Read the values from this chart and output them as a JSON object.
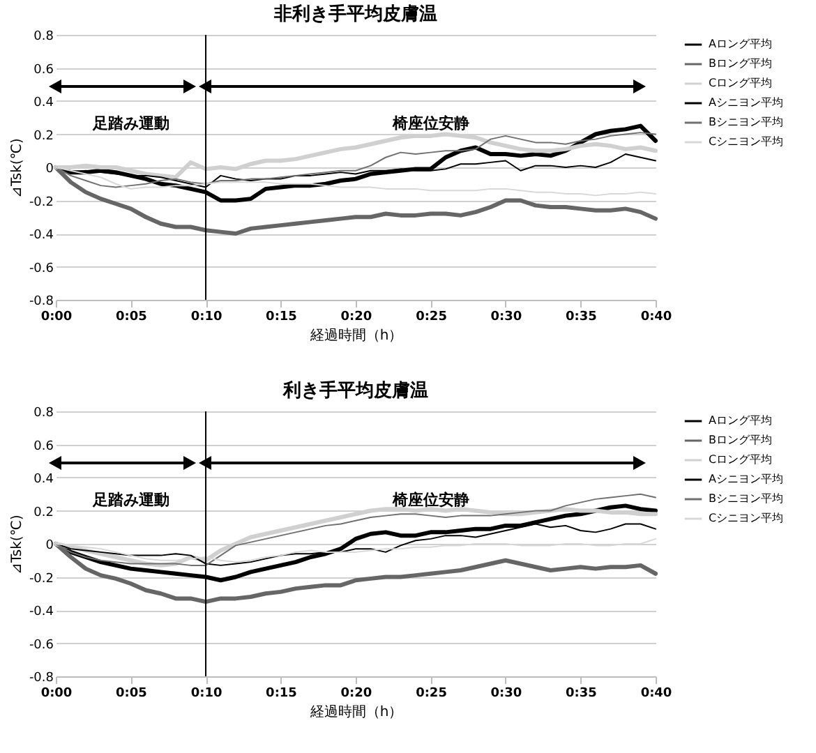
{
  "chart_data": [
    {
      "type": "line",
      "title": "非利き手平均皮膚温",
      "xlabel": "経過時間（h）",
      "ylabel": "⊿Tsk(℃)",
      "legend": "right",
      "grid": "y",
      "xlim": [
        0,
        0.6667
      ],
      "ylim": [
        -0.8,
        0.8
      ],
      "xticks": [
        {
          "value": 0,
          "label": "0:00"
        },
        {
          "value": 0.0833,
          "label": "0:05"
        },
        {
          "value": 0.1667,
          "label": "0:10"
        },
        {
          "value": 0.25,
          "label": "0:15"
        },
        {
          "value": 0.3333,
          "label": "0:20"
        },
        {
          "value": 0.4167,
          "label": "0:25"
        },
        {
          "value": 0.5,
          "label": "0:30"
        },
        {
          "value": 0.5833,
          "label": "0:35"
        },
        {
          "value": 0.6667,
          "label": "0:40"
        }
      ],
      "yticks": [
        -0.8,
        -0.6,
        -0.4,
        -0.2,
        0,
        0.2,
        0.4,
        0.6,
        0.8
      ],
      "x": [
        0,
        0.0167,
        0.0333,
        0.05,
        0.0667,
        0.0833,
        0.1,
        0.1167,
        0.1333,
        0.15,
        0.1667,
        0.1833,
        0.2,
        0.2167,
        0.2333,
        0.25,
        0.2667,
        0.2833,
        0.3,
        0.3167,
        0.3333,
        0.35,
        0.3667,
        0.3833,
        0.4,
        0.4167,
        0.4333,
        0.45,
        0.4667,
        0.4833,
        0.5,
        0.5167,
        0.5333,
        0.55,
        0.5667,
        0.5833,
        0.6,
        0.6167,
        0.6333,
        0.65,
        0.6667
      ],
      "ref_lines": [
        {
          "axis": "x",
          "value": 0.1667,
          "color": "#000000"
        }
      ],
      "annotations": [
        "足踏み運動",
        "椅座位安静"
      ],
      "series": [
        {
          "name": "Aロング平均",
          "color": "#000000",
          "values": [
            0,
            -0.03,
            -0.03,
            -0.02,
            -0.03,
            -0.05,
            -0.07,
            -0.1,
            -0.11,
            -0.13,
            -0.15,
            -0.2,
            -0.2,
            -0.19,
            -0.13,
            -0.12,
            -0.11,
            -0.11,
            -0.1,
            -0.08,
            -0.07,
            -0.04,
            -0.03,
            -0.02,
            -0.01,
            -0.01,
            0.06,
            0.1,
            0.12,
            0.08,
            0.08,
            0.07,
            0.08,
            0.07,
            0.1,
            0.15,
            0.2,
            0.22,
            0.23,
            0.25,
            0.16
          ]
        },
        {
          "name": "Bロング平均",
          "color": "#666666",
          "values": [
            0,
            -0.09,
            -0.15,
            -0.19,
            -0.22,
            -0.25,
            -0.3,
            -0.34,
            -0.36,
            -0.36,
            -0.38,
            -0.39,
            -0.4,
            -0.37,
            -0.36,
            -0.35,
            -0.34,
            -0.33,
            -0.32,
            -0.31,
            -0.3,
            -0.3,
            -0.28,
            -0.29,
            -0.29,
            -0.28,
            -0.28,
            -0.29,
            -0.27,
            -0.24,
            -0.2,
            -0.2,
            -0.23,
            -0.24,
            -0.24,
            -0.25,
            -0.26,
            -0.26,
            -0.25,
            -0.27,
            -0.31
          ]
        },
        {
          "name": "Cロング平均",
          "color": "#d0d0d0",
          "values": [
            0,
            0,
            0.01,
            0,
            0,
            -0.02,
            -0.04,
            -0.05,
            -0.06,
            0.03,
            -0.01,
            0,
            -0.01,
            0.02,
            0.04,
            0.04,
            0.05,
            0.07,
            0.09,
            0.11,
            0.12,
            0.14,
            0.16,
            0.18,
            0.19,
            0.19,
            0.2,
            0.19,
            0.18,
            0.15,
            0.13,
            0.11,
            0.1,
            0.1,
            0.11,
            0.13,
            0.14,
            0.13,
            0.11,
            0.12,
            0.1
          ]
        },
        {
          "name": "Aシニヨン平均",
          "color": "#000000",
          "values": [
            0,
            -0.03,
            -0.02,
            -0.03,
            -0.04,
            -0.05,
            -0.05,
            -0.06,
            -0.08,
            -0.1,
            -0.12,
            -0.05,
            -0.07,
            -0.08,
            -0.07,
            -0.07,
            -0.05,
            -0.05,
            -0.04,
            -0.03,
            -0.04,
            -0.02,
            -0.02,
            -0.01,
            -0.02,
            -0.02,
            -0.01,
            0.02,
            0.02,
            0.03,
            0.04,
            -0.02,
            0.01,
            0.01,
            0,
            0.01,
            0,
            0.03,
            0.08,
            0.06,
            0.04
          ]
        },
        {
          "name": "Bシニヨン平均",
          "color": "#707070",
          "values": [
            0,
            -0.05,
            -0.08,
            -0.11,
            -0.12,
            -0.11,
            -0.1,
            -0.08,
            -0.07,
            -0.09,
            -0.1,
            -0.08,
            -0.08,
            -0.07,
            -0.07,
            -0.06,
            -0.05,
            -0.04,
            -0.03,
            -0.02,
            -0.02,
            0.01,
            0.06,
            0.09,
            0.08,
            0.09,
            0.1,
            0.1,
            0.11,
            0.17,
            0.19,
            0.17,
            0.15,
            0.15,
            0.14,
            0.16,
            0.17,
            0.19,
            0.2,
            0.21,
            0.2
          ]
        },
        {
          "name": "Cシニヨン平均",
          "color": "#d8d8d8",
          "values": [
            0,
            -0.02,
            -0.04,
            -0.06,
            -0.1,
            -0.13,
            -0.12,
            -0.12,
            -0.11,
            -0.11,
            -0.1,
            -0.09,
            -0.09,
            -0.09,
            -0.09,
            -0.1,
            -0.1,
            -0.1,
            -0.11,
            -0.12,
            -0.12,
            -0.12,
            -0.13,
            -0.13,
            -0.13,
            -0.14,
            -0.14,
            -0.14,
            -0.14,
            -0.13,
            -0.13,
            -0.14,
            -0.15,
            -0.15,
            -0.16,
            -0.16,
            -0.17,
            -0.16,
            -0.16,
            -0.15,
            -0.16
          ]
        }
      ]
    },
    {
      "type": "line",
      "title": "利き手平均皮膚温",
      "xlabel": "経過時間（h）",
      "ylabel": "⊿Tsk(℃)",
      "legend": "right",
      "grid": "y",
      "xlim": [
        0,
        0.6667
      ],
      "ylim": [
        -0.8,
        0.8
      ],
      "xticks": [
        {
          "value": 0,
          "label": "0:00"
        },
        {
          "value": 0.0833,
          "label": "0:05"
        },
        {
          "value": 0.1667,
          "label": "0:10"
        },
        {
          "value": 0.25,
          "label": "0:15"
        },
        {
          "value": 0.3333,
          "label": "0:20"
        },
        {
          "value": 0.4167,
          "label": "0:25"
        },
        {
          "value": 0.5,
          "label": "0:30"
        },
        {
          "value": 0.5833,
          "label": "0:35"
        },
        {
          "value": 0.6667,
          "label": "0:40"
        }
      ],
      "yticks": [
        -0.8,
        -0.6,
        -0.4,
        -0.2,
        0,
        0.2,
        0.4,
        0.6,
        0.8
      ],
      "x": [
        0,
        0.0167,
        0.0333,
        0.05,
        0.0667,
        0.0833,
        0.1,
        0.1167,
        0.1333,
        0.15,
        0.1667,
        0.1833,
        0.2,
        0.2167,
        0.2333,
        0.25,
        0.2667,
        0.2833,
        0.3,
        0.3167,
        0.3333,
        0.35,
        0.3667,
        0.3833,
        0.4,
        0.4167,
        0.4333,
        0.45,
        0.4667,
        0.4833,
        0.5,
        0.5167,
        0.5333,
        0.55,
        0.5667,
        0.5833,
        0.6,
        0.6167,
        0.6333,
        0.65,
        0.6667
      ],
      "ref_lines": [
        {
          "axis": "x",
          "value": 0.1667,
          "color": "#000000"
        }
      ],
      "annotations": [
        "足踏み運動",
        "椅座位安静"
      ],
      "series": [
        {
          "name": "Aロング平均",
          "color": "#000000",
          "values": [
            0,
            -0.05,
            -0.08,
            -0.11,
            -0.13,
            -0.15,
            -0.16,
            -0.17,
            -0.18,
            -0.19,
            -0.2,
            -0.22,
            -0.2,
            -0.17,
            -0.15,
            -0.13,
            -0.11,
            -0.08,
            -0.06,
            -0.03,
            0.03,
            0.06,
            0.07,
            0.05,
            0.05,
            0.07,
            0.07,
            0.08,
            0.09,
            0.09,
            0.11,
            0.11,
            0.13,
            0.15,
            0.17,
            0.18,
            0.2,
            0.22,
            0.23,
            0.21,
            0.2
          ]
        },
        {
          "name": "Bロング平均",
          "color": "#666666",
          "values": [
            0,
            -0.08,
            -0.15,
            -0.19,
            -0.21,
            -0.24,
            -0.28,
            -0.3,
            -0.33,
            -0.33,
            -0.35,
            -0.33,
            -0.33,
            -0.32,
            -0.3,
            -0.29,
            -0.27,
            -0.26,
            -0.25,
            -0.25,
            -0.22,
            -0.21,
            -0.2,
            -0.2,
            -0.19,
            -0.18,
            -0.17,
            -0.16,
            -0.14,
            -0.12,
            -0.1,
            -0.12,
            -0.14,
            -0.16,
            -0.15,
            -0.14,
            -0.15,
            -0.14,
            -0.14,
            -0.13,
            -0.18
          ]
        },
        {
          "name": "Cロング平均",
          "color": "#d0d0d0",
          "values": [
            0,
            -0.02,
            -0.04,
            -0.06,
            -0.08,
            -0.1,
            -0.12,
            -0.13,
            -0.12,
            -0.08,
            -0.1,
            -0.04,
            0,
            0.04,
            0.06,
            0.08,
            0.1,
            0.12,
            0.14,
            0.16,
            0.18,
            0.2,
            0.21,
            0.21,
            0.2,
            0.21,
            0.2,
            0.21,
            0.2,
            0.19,
            0.18,
            0.18,
            0.19,
            0.2,
            0.21,
            0.2,
            0.2,
            0.19,
            0.19,
            0.18,
            0.18
          ]
        },
        {
          "name": "Aシニヨン平均",
          "color": "#000000",
          "values": [
            0,
            -0.03,
            -0.04,
            -0.05,
            -0.06,
            -0.07,
            -0.07,
            -0.07,
            -0.06,
            -0.07,
            -0.12,
            -0.13,
            -0.12,
            -0.11,
            -0.09,
            -0.07,
            -0.06,
            -0.06,
            -0.05,
            -0.05,
            -0.03,
            -0.03,
            -0.05,
            -0.01,
            0.02,
            0.03,
            0.05,
            0.05,
            0.04,
            0.06,
            0.08,
            0.1,
            0.12,
            0.1,
            0.11,
            0.08,
            0.07,
            0.09,
            0.12,
            0.12,
            0.09
          ]
        },
        {
          "name": "Bシニヨン平均",
          "color": "#707070",
          "values": [
            0,
            -0.05,
            -0.08,
            -0.1,
            -0.11,
            -0.12,
            -0.12,
            -0.12,
            -0.12,
            -0.13,
            -0.13,
            -0.07,
            -0.01,
            0.01,
            0.03,
            0.05,
            0.07,
            0.09,
            0.11,
            0.12,
            0.14,
            0.16,
            0.17,
            0.18,
            0.18,
            0.17,
            0.16,
            0.17,
            0.17,
            0.17,
            0.18,
            0.19,
            0.2,
            0.2,
            0.23,
            0.25,
            0.27,
            0.28,
            0.29,
            0.3,
            0.28
          ]
        },
        {
          "name": "Cシニヨン平均",
          "color": "#d8d8d8",
          "values": [
            0,
            -0.01,
            -0.02,
            -0.03,
            -0.05,
            -0.07,
            -0.09,
            -0.1,
            -0.1,
            -0.09,
            -0.08,
            -0.1,
            -0.11,
            -0.1,
            -0.08,
            -0.07,
            -0.05,
            -0.04,
            -0.05,
            -0.05,
            -0.05,
            -0.04,
            -0.03,
            -0.03,
            -0.02,
            -0.02,
            -0.01,
            -0.01,
            0,
            0,
            0,
            -0.01,
            -0.01,
            -0.01,
            0,
            0,
            -0.01,
            -0.01,
            0,
            0,
            0.03
          ]
        }
      ]
    }
  ]
}
